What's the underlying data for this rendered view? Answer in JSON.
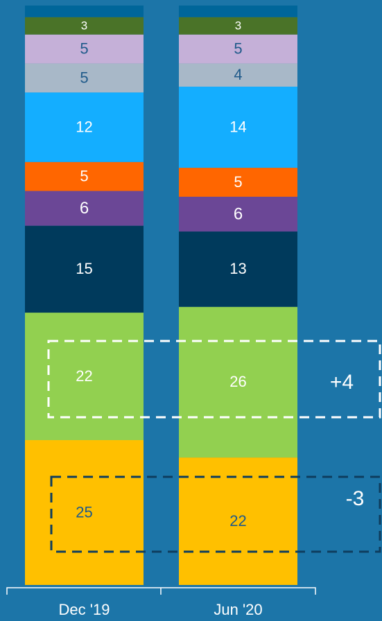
{
  "chart_data": {
    "type": "stacked_bar",
    "categories": [
      "Dec '19",
      "Jun '20"
    ],
    "ylim": [
      0,
      100
    ],
    "series": [
      {
        "color": "#FFC000",
        "values": [
          25,
          22
        ]
      },
      {
        "color": "#92D050",
        "values": [
          22,
          26
        ]
      },
      {
        "color": "#003A5C",
        "values": [
          15,
          13
        ]
      },
      {
        "color": "#6B4796",
        "values": [
          6,
          6
        ]
      },
      {
        "color": "#FF6600",
        "values": [
          5,
          5
        ]
      },
      {
        "color": "#14AEFF",
        "values": [
          12,
          14
        ]
      },
      {
        "color": "#A8B8C8",
        "values": [
          5,
          4
        ]
      },
      {
        "color": "#C5B0D8",
        "values": [
          5,
          5
        ]
      },
      {
        "color": "#4A7328",
        "values": [
          3,
          3
        ]
      },
      {
        "color": "#00669A",
        "values": [
          2,
          2
        ],
        "value_labels": [
          null,
          null
        ]
      }
    ],
    "annotations": [
      "+4",
      "-3"
    ]
  }
}
